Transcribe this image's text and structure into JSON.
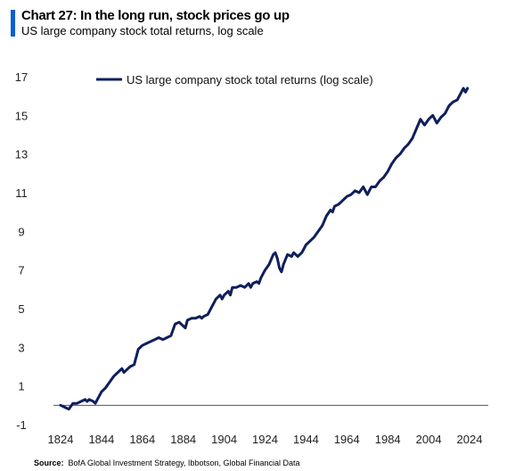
{
  "header": {
    "title": "Chart 27: In the long run, stock prices go up",
    "subtitle": "US large company stock total returns, log scale"
  },
  "source": {
    "label": "Source:",
    "text": "BofA Global Investment Strategy, Ibbotson, Global Financial Data"
  },
  "colors": {
    "accent": "#0a5fd6",
    "series": "#0f1f5c",
    "axis": "#555555"
  },
  "chart_data": {
    "type": "line",
    "title": "",
    "xlabel": "",
    "ylabel": "",
    "xlim": [
      1824,
      2024
    ],
    "ylim": [
      -1,
      17
    ],
    "x_ticks": [
      "1824",
      "1844",
      "1864",
      "1884",
      "1904",
      "1924",
      "1944",
      "1964",
      "1984",
      "2004",
      "2024"
    ],
    "y_ticks": [
      "-1",
      "1",
      "3",
      "5",
      "7",
      "9",
      "11",
      "13",
      "15",
      "17"
    ],
    "grid": false,
    "legend_position": "top",
    "series": [
      {
        "name": "US large company stock total returns (log scale)",
        "points": [
          [
            1824,
            0.0
          ],
          [
            1826,
            -0.1
          ],
          [
            1828,
            -0.2
          ],
          [
            1830,
            0.1
          ],
          [
            1832,
            0.1
          ],
          [
            1834,
            0.2
          ],
          [
            1836,
            0.3
          ],
          [
            1837,
            0.2
          ],
          [
            1838,
            0.3
          ],
          [
            1840,
            0.2
          ],
          [
            1841,
            0.1
          ],
          [
            1842,
            0.3
          ],
          [
            1844,
            0.7
          ],
          [
            1846,
            0.9
          ],
          [
            1848,
            1.2
          ],
          [
            1850,
            1.5
          ],
          [
            1852,
            1.7
          ],
          [
            1854,
            1.9
          ],
          [
            1855,
            1.7
          ],
          [
            1856,
            1.8
          ],
          [
            1858,
            2.0
          ],
          [
            1860,
            2.1
          ],
          [
            1862,
            2.9
          ],
          [
            1864,
            3.1
          ],
          [
            1866,
            3.2
          ],
          [
            1868,
            3.3
          ],
          [
            1870,
            3.4
          ],
          [
            1872,
            3.5
          ],
          [
            1874,
            3.4
          ],
          [
            1876,
            3.5
          ],
          [
            1878,
            3.6
          ],
          [
            1880,
            4.2
          ],
          [
            1882,
            4.3
          ],
          [
            1884,
            4.1
          ],
          [
            1885,
            4.0
          ],
          [
            1886,
            4.4
          ],
          [
            1888,
            4.5
          ],
          [
            1890,
            4.5
          ],
          [
            1892,
            4.6
          ],
          [
            1893,
            4.5
          ],
          [
            1894,
            4.6
          ],
          [
            1896,
            4.7
          ],
          [
            1898,
            5.1
          ],
          [
            1900,
            5.5
          ],
          [
            1902,
            5.7
          ],
          [
            1903,
            5.5
          ],
          [
            1904,
            5.7
          ],
          [
            1906,
            5.9
          ],
          [
            1907,
            5.7
          ],
          [
            1908,
            6.1
          ],
          [
            1910,
            6.1
          ],
          [
            1912,
            6.2
          ],
          [
            1914,
            6.1
          ],
          [
            1916,
            6.3
          ],
          [
            1917,
            6.1
          ],
          [
            1918,
            6.3
          ],
          [
            1920,
            6.4
          ],
          [
            1921,
            6.3
          ],
          [
            1922,
            6.6
          ],
          [
            1924,
            7.0
          ],
          [
            1926,
            7.3
          ],
          [
            1928,
            7.8
          ],
          [
            1929,
            7.9
          ],
          [
            1930,
            7.6
          ],
          [
            1931,
            7.1
          ],
          [
            1932,
            6.9
          ],
          [
            1933,
            7.3
          ],
          [
            1935,
            7.8
          ],
          [
            1937,
            7.7
          ],
          [
            1938,
            7.9
          ],
          [
            1940,
            7.7
          ],
          [
            1942,
            7.9
          ],
          [
            1944,
            8.3
          ],
          [
            1946,
            8.5
          ],
          [
            1948,
            8.7
          ],
          [
            1950,
            9.0
          ],
          [
            1952,
            9.3
          ],
          [
            1954,
            9.8
          ],
          [
            1956,
            10.1
          ],
          [
            1957,
            10.0
          ],
          [
            1958,
            10.3
          ],
          [
            1960,
            10.4
          ],
          [
            1962,
            10.6
          ],
          [
            1964,
            10.8
          ],
          [
            1966,
            10.9
          ],
          [
            1968,
            11.1
          ],
          [
            1970,
            11.0
          ],
          [
            1972,
            11.3
          ],
          [
            1974,
            10.9
          ],
          [
            1975,
            11.1
          ],
          [
            1976,
            11.3
          ],
          [
            1978,
            11.3
          ],
          [
            1980,
            11.6
          ],
          [
            1982,
            11.8
          ],
          [
            1984,
            12.1
          ],
          [
            1986,
            12.5
          ],
          [
            1988,
            12.8
          ],
          [
            1990,
            13.0
          ],
          [
            1992,
            13.3
          ],
          [
            1994,
            13.5
          ],
          [
            1996,
            13.8
          ],
          [
            1998,
            14.3
          ],
          [
            2000,
            14.8
          ],
          [
            2002,
            14.5
          ],
          [
            2004,
            14.8
          ],
          [
            2006,
            15.0
          ],
          [
            2008,
            14.6
          ],
          [
            2010,
            14.9
          ],
          [
            2012,
            15.1
          ],
          [
            2014,
            15.5
          ],
          [
            2016,
            15.7
          ],
          [
            2018,
            15.8
          ],
          [
            2020,
            16.2
          ],
          [
            2021,
            16.4
          ],
          [
            2022,
            16.2
          ],
          [
            2023,
            16.4
          ]
        ]
      }
    ]
  }
}
